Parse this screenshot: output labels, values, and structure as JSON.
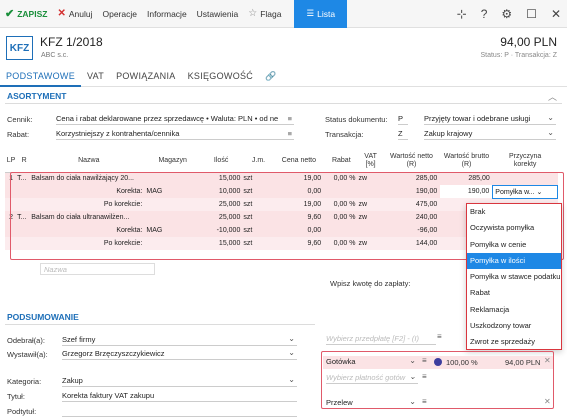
{
  "toolbar": {
    "save": "ZAPISZ",
    "cancel": "Anuluj",
    "operations": "Operacje",
    "info": "Informacje",
    "settings": "Ustawienia",
    "flag": "Flaga",
    "list": "Lista"
  },
  "header": {
    "badge": "KFZ",
    "title": "KFZ 1/2018",
    "subtitle": "ABC s.c.",
    "amount": "94,00 PLN",
    "status": "Status: P · Transakcja: Z"
  },
  "tabs": [
    "PODSTAWOWE",
    "VAT",
    "POWIĄZANIA",
    "KSIĘGOWOŚĆ"
  ],
  "assortment": {
    "title": "ASORTYMENT",
    "price_label": "Cennik:",
    "price_value": "Cena i rabat deklarowane przez sprzedawcę • Waluta: PLN • od ne",
    "discount_label": "Rabat:",
    "discount_value": "Korzystniejszy z kontrahenta/cennika",
    "doc_status_label": "Status dokumentu:",
    "doc_status_code": "P",
    "doc_status_value": "Przyjęty towar i odebrane usługi",
    "transaction_label": "Transakcja:",
    "transaction_code": "Z",
    "transaction_value": "Zakup krajowy"
  },
  "grid": {
    "headers": {
      "lp": "LP",
      "r": "R",
      "name": "Nazwa",
      "warehouse": "Magazyn",
      "qty": "Ilość",
      "unit": "J.m.",
      "net_price": "Cena netto",
      "discount": "Rabat",
      "vat1": "VAT",
      "vat2": "[%]",
      "net_value1": "Wartość netto",
      "net_value2": "(R)",
      "gross_value1": "Wartość brutto",
      "gross_value2": "(R)",
      "reason1": "Przyczyna",
      "reason2": "korekty"
    },
    "rows": [
      {
        "lp": "1",
        "r": "T...",
        "name": "Balsam do ciała nawilżający 20...",
        "warehouse": "",
        "qty": "15,000",
        "unit": "szt",
        "price": "19,00",
        "discount": "0,00 %",
        "vat": "zw",
        "net": "285,00",
        "gross": "285,00",
        "reason": ""
      },
      {
        "lp": "",
        "r": "",
        "name": "Korekta:",
        "warehouse": "MAG",
        "qty": "10,000",
        "unit": "szt",
        "price": "0,00",
        "discount": "",
        "vat": "",
        "net": "190,00",
        "gross": "190,00",
        "reason": "Pomyłka w..."
      },
      {
        "lp": "",
        "r": "",
        "name": "Po korekcie:",
        "warehouse": "",
        "qty": "25,000",
        "unit": "szt",
        "price": "19,00",
        "discount": "0,00 %",
        "vat": "zw",
        "net": "475,00",
        "gross": "",
        "reason": ""
      },
      {
        "lp": "2",
        "r": "T...",
        "name": "Balsam do ciała ultranawilżen...",
        "warehouse": "",
        "qty": "25,000",
        "unit": "szt",
        "price": "9,60",
        "discount": "0,00 %",
        "vat": "zw",
        "net": "240,00",
        "gross": "",
        "reason": ""
      },
      {
        "lp": "",
        "r": "",
        "name": "Korekta:",
        "warehouse": "MAG",
        "qty": "-10,000",
        "unit": "szt",
        "price": "0,00",
        "discount": "",
        "vat": "",
        "net": "-96,00",
        "gross": "",
        "reason": ""
      },
      {
        "lp": "",
        "r": "",
        "name": "Po korekcie:",
        "warehouse": "",
        "qty": "15,000",
        "unit": "szt",
        "price": "9,60",
        "discount": "0,00 %",
        "vat": "zw",
        "net": "144,00",
        "gross": "",
        "reason": ""
      }
    ],
    "new_name_placeholder": "Nazwa",
    "payment_prompt": "Wpisz kwotę do zapłaty:"
  },
  "dropdown": {
    "items": [
      "Brak",
      "Oczywista pomyłka",
      "Pomyłka w cenie",
      "Pomyłka w ilości",
      "Pomyłka w stawce podatku",
      "Rabat",
      "Reklamacja",
      "Uszkodzony towar",
      "Zwrot ze sprzedaży"
    ],
    "selected": "Pomyłka w ilości"
  },
  "summary": {
    "title": "PODSUMOWANIE",
    "received_label": "Odebrał(a):",
    "received_value": "Szef firmy",
    "issued_label": "Wystawił(a):",
    "issued_value": "Grzegorz Brzęczyszczykiewicz",
    "category_label": "Kategoria:",
    "category_value": "Zakup",
    "title_label": "Tytuł:",
    "title_value": "Korekta faktury VAT zakupu",
    "subtitle_label": "Podtytuł:",
    "prepayment_placeholder": "Wybierz przedpłatę [F2] - (I)",
    "payment_method": "Gotówka",
    "payment_percent": "100,00 %",
    "payment_amount": "94,00 PLN",
    "payment_placeholder": "Wybierz płatność gotów",
    "transfer": "Przelew"
  }
}
